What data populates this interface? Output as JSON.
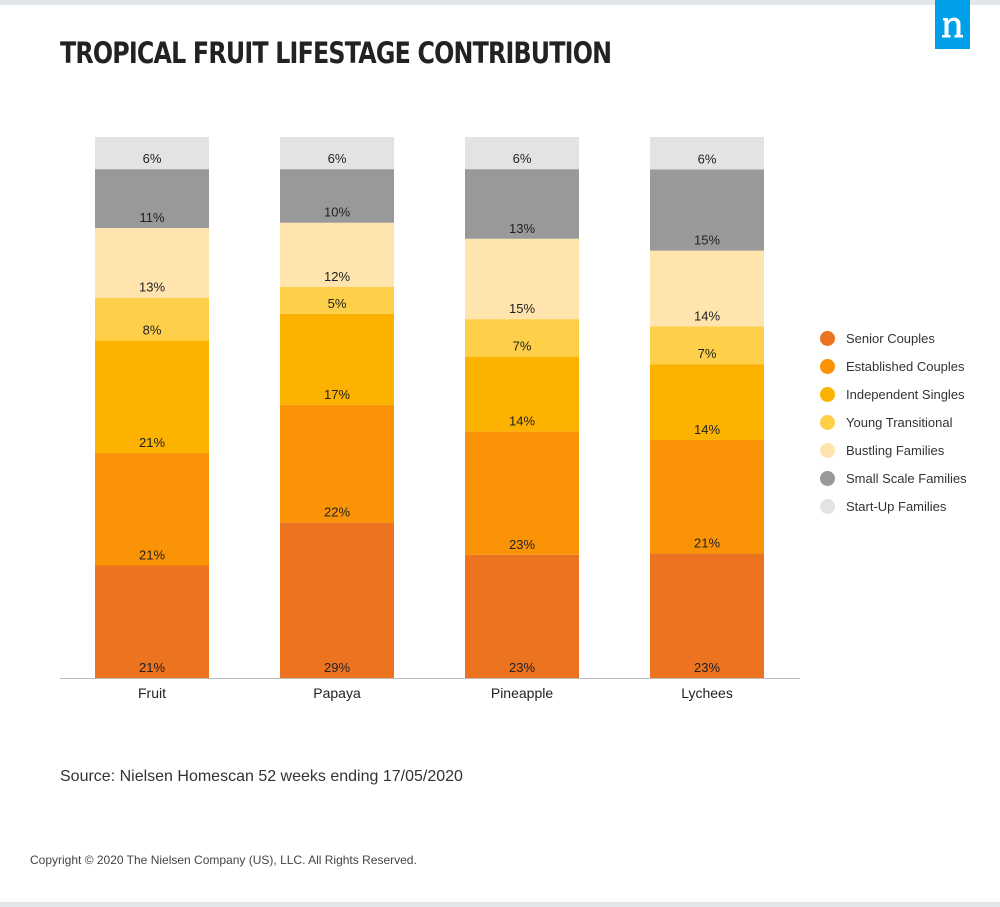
{
  "title": "TROPICAL FRUIT LIFESTAGE CONTRIBUTION",
  "logo": {
    "letter": "n",
    "color": "#00a0e9"
  },
  "source": "Source: Nielsen Homescan 52 weeks ending 17/05/2020",
  "copyright": "Copyright © 2020 The Nielsen Company (US), LLC. All Rights Reserved.",
  "chart_data": {
    "type": "bar",
    "stacked": true,
    "title": "TROPICAL FRUIT LIFESTAGE CONTRIBUTION",
    "categories": [
      "Fruit",
      "Papaya",
      "Pineapple",
      "Lychees"
    ],
    "series": [
      {
        "name": "Senior Couples",
        "color": "#ec7320",
        "values": [
          21,
          29,
          23,
          23
        ]
      },
      {
        "name": "Established Couples",
        "color": "#fb9306",
        "values": [
          21,
          22,
          23,
          21
        ]
      },
      {
        "name": "Independent Singles",
        "color": "#fdb200",
        "values": [
          21,
          17,
          14,
          14
        ]
      },
      {
        "name": "Young Transitional",
        "color": "#fed049",
        "values": [
          8,
          5,
          7,
          7
        ]
      },
      {
        "name": "Bustling Families",
        "color": "#ffe4ae",
        "values": [
          13,
          12,
          15,
          14
        ]
      },
      {
        "name": "Small Scale Families",
        "color": "#999999",
        "values": [
          11,
          10,
          13,
          15
        ]
      },
      {
        "name": "Start-Up Families",
        "color": "#e3e3e3",
        "values": [
          6,
          6,
          6,
          6
        ]
      }
    ],
    "value_suffix": "%",
    "ylim": [
      0,
      100
    ],
    "grid": false,
    "legend_position": "right",
    "xlabel": "",
    "ylabel": ""
  }
}
